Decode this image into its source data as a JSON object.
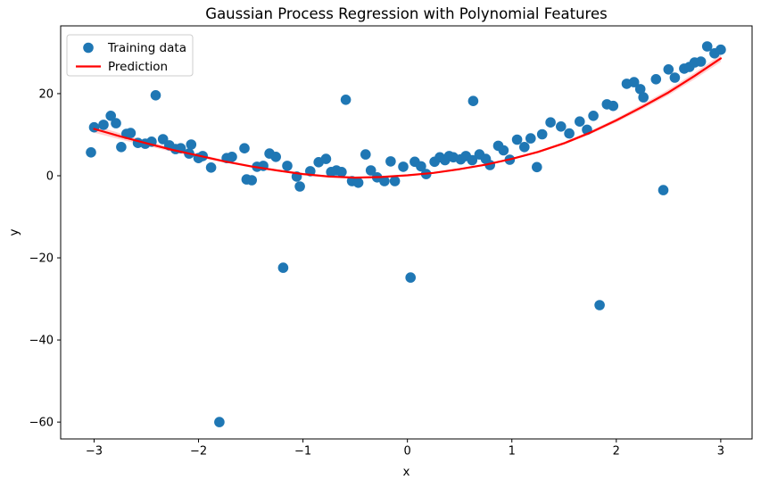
{
  "chart_data": {
    "type": "scatter",
    "title": "Gaussian Process Regression with Polynomial Features",
    "xlabel": "x",
    "ylabel": "y",
    "xlim": [
      -3.32,
      3.3
    ],
    "ylim": [
      -64.1,
      36.5
    ],
    "x_ticks": [
      -3,
      -2,
      -1,
      0,
      1,
      2,
      3
    ],
    "y_ticks": [
      20,
      0,
      -20,
      -40,
      -60
    ],
    "grid": false,
    "legend_position": "upper left",
    "background": "#ffffff",
    "series": [
      {
        "name": "Training data",
        "type": "scatter",
        "color": "#1f77b4",
        "points": [
          [
            -3.03,
            5.7
          ],
          [
            -3.0,
            11.8
          ],
          [
            -2.91,
            12.4
          ],
          [
            -2.84,
            14.6
          ],
          [
            -2.79,
            12.8
          ],
          [
            -2.74,
            7.0
          ],
          [
            -2.69,
            10.2
          ],
          [
            -2.65,
            10.4
          ],
          [
            -2.58,
            8.0
          ],
          [
            -2.51,
            7.8
          ],
          [
            -2.45,
            8.3
          ],
          [
            -2.41,
            19.6
          ],
          [
            -2.34,
            8.9
          ],
          [
            -2.28,
            7.4
          ],
          [
            -2.22,
            6.5
          ],
          [
            -2.17,
            6.7
          ],
          [
            -2.09,
            5.4
          ],
          [
            -2.07,
            7.6
          ],
          [
            -2.0,
            4.3
          ],
          [
            -1.96,
            4.8
          ],
          [
            -1.88,
            2.0
          ],
          [
            -1.8,
            -60.0
          ],
          [
            -1.73,
            4.3
          ],
          [
            -1.68,
            4.6
          ],
          [
            -1.56,
            6.7
          ],
          [
            -1.54,
            -0.9
          ],
          [
            -1.49,
            -1.1
          ],
          [
            -1.44,
            2.2
          ],
          [
            -1.38,
            2.4
          ],
          [
            -1.32,
            5.4
          ],
          [
            -1.26,
            4.6
          ],
          [
            -1.19,
            -22.4
          ],
          [
            -1.15,
            2.4
          ],
          [
            -1.06,
            -0.2
          ],
          [
            -1.03,
            -2.6
          ],
          [
            -0.93,
            1.1
          ],
          [
            -0.85,
            3.3
          ],
          [
            -0.78,
            4.1
          ],
          [
            -0.73,
            0.9
          ],
          [
            -0.68,
            1.3
          ],
          [
            -0.63,
            0.9
          ],
          [
            -0.59,
            18.5
          ],
          [
            -0.53,
            -1.3
          ],
          [
            -0.47,
            -1.7
          ],
          [
            -0.4,
            5.2
          ],
          [
            -0.35,
            1.3
          ],
          [
            -0.29,
            -0.4
          ],
          [
            -0.22,
            -1.3
          ],
          [
            -0.16,
            3.5
          ],
          [
            -0.12,
            -1.3
          ],
          [
            -0.04,
            2.2
          ],
          [
            0.03,
            -24.8
          ],
          [
            0.07,
            3.4
          ],
          [
            0.13,
            2.3
          ],
          [
            0.18,
            0.4
          ],
          [
            0.26,
            3.4
          ],
          [
            0.31,
            4.5
          ],
          [
            0.36,
            3.8
          ],
          [
            0.4,
            4.8
          ],
          [
            0.44,
            4.5
          ],
          [
            0.51,
            4.0
          ],
          [
            0.56,
            4.8
          ],
          [
            0.62,
            3.8
          ],
          [
            0.63,
            18.2
          ],
          [
            0.69,
            5.2
          ],
          [
            0.75,
            4.1
          ],
          [
            0.79,
            2.6
          ],
          [
            0.87,
            7.3
          ],
          [
            0.92,
            6.2
          ],
          [
            0.98,
            3.9
          ],
          [
            1.05,
            8.8
          ],
          [
            1.12,
            7.0
          ],
          [
            1.18,
            9.1
          ],
          [
            1.24,
            2.1
          ],
          [
            1.29,
            10.1
          ],
          [
            1.37,
            13.0
          ],
          [
            1.47,
            12.0
          ],
          [
            1.55,
            10.3
          ],
          [
            1.65,
            13.2
          ],
          [
            1.72,
            11.2
          ],
          [
            1.78,
            14.6
          ],
          [
            1.84,
            -31.5
          ],
          [
            1.91,
            17.4
          ],
          [
            1.97,
            17.0
          ],
          [
            2.1,
            22.4
          ],
          [
            2.17,
            22.8
          ],
          [
            2.23,
            21.1
          ],
          [
            2.26,
            19.1
          ],
          [
            2.38,
            23.5
          ],
          [
            2.45,
            -3.5
          ],
          [
            2.5,
            25.9
          ],
          [
            2.56,
            23.9
          ],
          [
            2.65,
            26.1
          ],
          [
            2.7,
            26.5
          ],
          [
            2.75,
            27.6
          ],
          [
            2.81,
            27.8
          ],
          [
            2.87,
            31.5
          ],
          [
            2.94,
            29.8
          ],
          [
            3.0,
            30.7
          ]
        ]
      },
      {
        "name": "Prediction",
        "type": "line",
        "color": "#ff0000",
        "x": [
          -3,
          -2.75,
          -2.5,
          -2.25,
          -2,
          -1.75,
          -1.5,
          -1.25,
          -1,
          -0.75,
          -0.5,
          -0.25,
          0,
          0.25,
          0.5,
          0.75,
          1,
          1.25,
          1.5,
          1.75,
          2,
          2.25,
          2.5,
          2.75,
          3
        ],
        "y": [
          11.4,
          9.6,
          7.9,
          6.3,
          4.9,
          3.5,
          2.3,
          1.3,
          0.4,
          -0.2,
          -0.45,
          -0.3,
          0.1,
          0.7,
          1.6,
          2.7,
          4.1,
          5.8,
          7.9,
          10.5,
          13.5,
          16.8,
          20.3,
          24.3,
          28.6
        ],
        "band_sigma": [
          0.9,
          0.75,
          0.6,
          0.5,
          0.4,
          0.33,
          0.28,
          0.23,
          0.2,
          0.18,
          0.17,
          0.16,
          0.16,
          0.17,
          0.18,
          0.2,
          0.23,
          0.28,
          0.33,
          0.4,
          0.5,
          0.6,
          0.7,
          0.8,
          0.9
        ]
      }
    ]
  }
}
